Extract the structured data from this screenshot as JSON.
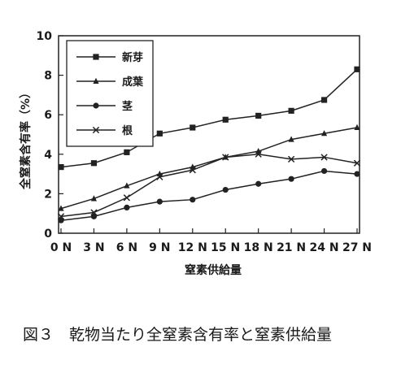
{
  "chart_data": {
    "type": "line",
    "categories": [
      "0 N",
      "3 N",
      "6 N",
      "9 N",
      "12 N",
      "15 N",
      "18 N",
      "21 N",
      "24 N",
      "27 N"
    ],
    "xlabel": "窒素供給量",
    "ylabel": "全窒素含有率（%）",
    "ylim": [
      0,
      10
    ],
    "yticks": [
      0,
      2,
      4,
      6,
      8,
      10
    ],
    "grid": false,
    "legend_position": "top-left",
    "series": [
      {
        "name": "新芽",
        "marker": "square",
        "values": [
          3.35,
          3.55,
          4.1,
          5.05,
          5.35,
          5.75,
          5.95,
          6.2,
          6.75,
          8.3
        ]
      },
      {
        "name": "成葉",
        "marker": "triangle",
        "values": [
          1.25,
          1.75,
          2.4,
          3.0,
          3.35,
          3.85,
          4.15,
          4.75,
          5.05,
          5.35
        ]
      },
      {
        "name": "茎",
        "marker": "circle",
        "values": [
          0.65,
          0.85,
          1.3,
          1.6,
          1.7,
          2.2,
          2.5,
          2.75,
          3.15,
          3.0
        ]
      },
      {
        "name": "根",
        "marker": "x",
        "values": [
          0.85,
          1.05,
          1.8,
          2.85,
          3.2,
          3.85,
          4.0,
          3.75,
          3.85,
          3.55
        ]
      }
    ]
  },
  "caption": "図３　乾物当たり全窒素含有率と窒素供給量"
}
